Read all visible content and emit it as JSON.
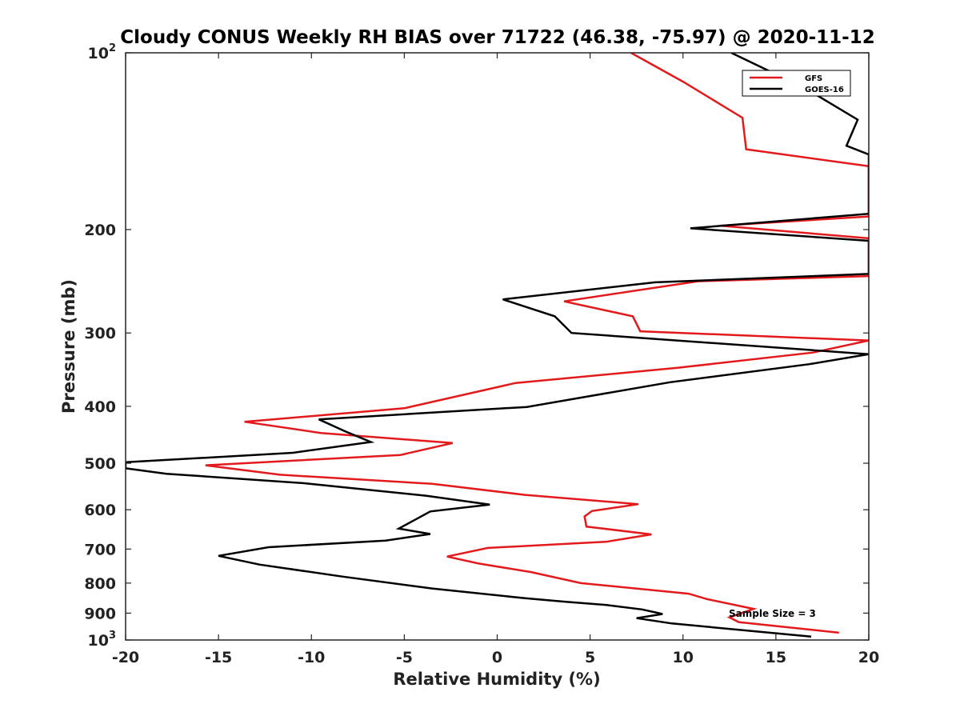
{
  "chart_data": {
    "type": "line",
    "title": "Cloudy CONUS Weekly RH BIAS over 71722 (46.38, -75.97) @ 2020-11-12",
    "xlabel": "Relative Humidity (%)",
    "ylabel": "Pressure (mb)",
    "xlim": [
      -20,
      20
    ],
    "ylim": [
      100,
      1000
    ],
    "yscale": "log",
    "y_reversed": true,
    "x_ticks": [
      "-20",
      "-15",
      "-10",
      "-5",
      "0",
      "5",
      "10",
      "15",
      "20"
    ],
    "y_ticks": [
      {
        "value": 100,
        "base": "10",
        "exp": "2"
      },
      {
        "value": 200,
        "label": "200"
      },
      {
        "value": 300,
        "label": "300"
      },
      {
        "value": 400,
        "label": "400"
      },
      {
        "value": 500,
        "label": "500"
      },
      {
        "value": 600,
        "label": "600"
      },
      {
        "value": 700,
        "label": "700"
      },
      {
        "value": 800,
        "label": "800"
      },
      {
        "value": 900,
        "label": "900"
      },
      {
        "value": 1000,
        "base": "10",
        "exp": "3"
      }
    ],
    "legend_position": "top-right",
    "annotation": "Sample Size = 3",
    "series": [
      {
        "name": "GFS",
        "color": "#e31a1c",
        "points": [
          [
            7.2,
            100
          ],
          [
            10,
            112
          ],
          [
            13.2,
            129
          ],
          [
            13.4,
            146
          ],
          [
            20,
            156
          ],
          [
            20,
            190
          ],
          [
            12,
            197
          ],
          [
            20,
            207
          ],
          [
            20,
            240
          ],
          [
            10.8,
            245
          ],
          [
            3.6,
            265
          ],
          [
            7.3,
            281
          ],
          [
            7.7,
            298
          ],
          [
            20,
            309
          ],
          [
            17,
            324
          ],
          [
            9.7,
            344
          ],
          [
            1,
            365
          ],
          [
            -5,
            403
          ],
          [
            -13.6,
            425
          ],
          [
            -9.5,
            444
          ],
          [
            -2.4,
            462
          ],
          [
            -5.2,
            484
          ],
          [
            -15.7,
            504
          ],
          [
            -11.7,
            523
          ],
          [
            -3.5,
            542
          ],
          [
            1.5,
            566
          ],
          [
            7.6,
            587
          ],
          [
            5.1,
            603
          ],
          [
            4.7,
            616
          ],
          [
            4.8,
            641
          ],
          [
            8.3,
            661
          ],
          [
            5.9,
            680
          ],
          [
            -0.5,
            697
          ],
          [
            -2.7,
            721
          ],
          [
            -1,
            741
          ],
          [
            1.8,
            766
          ],
          [
            4.5,
            800
          ],
          [
            10.3,
            834
          ],
          [
            11.3,
            852
          ],
          [
            13.8,
            885
          ],
          [
            12.5,
            915
          ],
          [
            13,
            932
          ],
          [
            18.4,
            972
          ]
        ]
      },
      {
        "name": "GOES-16",
        "color": "#000000",
        "points": [
          [
            12.6,
            100
          ],
          [
            16.6,
            115
          ],
          [
            19.4,
            130
          ],
          [
            18.8,
            144
          ],
          [
            20,
            149
          ],
          [
            20,
            188
          ],
          [
            10.4,
            199
          ],
          [
            20,
            209
          ],
          [
            20,
            238
          ],
          [
            8.5,
            246
          ],
          [
            0.3,
            263
          ],
          [
            3.1,
            281
          ],
          [
            4,
            300
          ],
          [
            20,
            326
          ],
          [
            16.8,
            339
          ],
          [
            9.3,
            364
          ],
          [
            1.6,
            401
          ],
          [
            -9.6,
            421
          ],
          [
            -8.2,
            441
          ],
          [
            -6.8,
            460
          ],
          [
            -11,
            480
          ],
          [
            -20,
            498
          ],
          [
            -20,
            510
          ],
          [
            -17.8,
            521
          ],
          [
            -10.3,
            541
          ],
          [
            -3.8,
            568
          ],
          [
            -0.4,
            588
          ],
          [
            -3.6,
            604
          ],
          [
            -4.5,
            626
          ],
          [
            -5.3,
            646
          ],
          [
            -3.6,
            660
          ],
          [
            -6,
            677
          ],
          [
            -12.3,
            695
          ],
          [
            -15,
            719
          ],
          [
            -12.8,
            744
          ],
          [
            -8.3,
            780
          ],
          [
            -3.5,
            817
          ],
          [
            1.5,
            849
          ],
          [
            3.7,
            861
          ],
          [
            5.9,
            872
          ],
          [
            7.8,
            887
          ],
          [
            8.9,
            903
          ],
          [
            7.5,
            918
          ],
          [
            9.4,
            937
          ],
          [
            16.9,
            987
          ]
        ]
      }
    ]
  }
}
